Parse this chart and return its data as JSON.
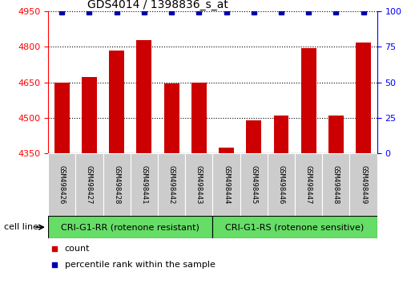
{
  "title": "GDS4014 / 1398836_s_at",
  "categories": [
    "GSM498426",
    "GSM498427",
    "GSM498428",
    "GSM498441",
    "GSM498442",
    "GSM498443",
    "GSM498444",
    "GSM498445",
    "GSM498446",
    "GSM498447",
    "GSM498448",
    "GSM498449"
  ],
  "bar_values": [
    4648,
    4672,
    4785,
    4828,
    4645,
    4650,
    4375,
    4490,
    4510,
    4793,
    4510,
    4820
  ],
  "percentile_values": [
    100,
    100,
    100,
    100,
    100,
    100,
    100,
    100,
    100,
    100,
    100,
    100
  ],
  "bar_color": "#cc0000",
  "percentile_color": "#0000aa",
  "ylim_left": [
    4350,
    4950
  ],
  "ylim_right": [
    0,
    100
  ],
  "yticks_left": [
    4350,
    4500,
    4650,
    4800,
    4950
  ],
  "yticks_right": [
    0,
    25,
    50,
    75,
    100
  ],
  "group1_label": "CRI-G1-RR (rotenone resistant)",
  "group2_label": "CRI-G1-RS (rotenone sensitive)",
  "group1_count": 6,
  "group2_count": 6,
  "cell_line_label": "cell line",
  "legend_count_label": "count",
  "legend_percentile_label": "percentile rank within the sample",
  "group_box_color": "#66dd66",
  "xticklabel_bg": "#cccccc",
  "bar_width": 0.55,
  "title_fontsize": 10,
  "tick_fontsize": 8,
  "xtick_fontsize": 6.5,
  "group_fontsize": 8,
  "legend_fontsize": 8,
  "cell_line_fontsize": 8
}
